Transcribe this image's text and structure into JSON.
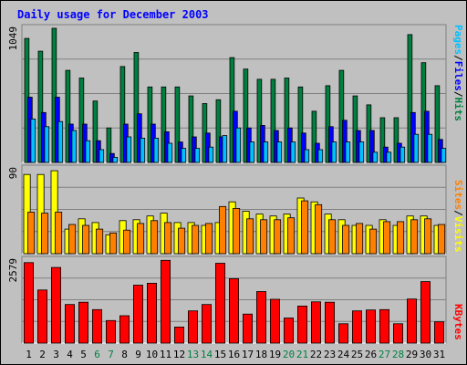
{
  "chart_data": [
    {
      "type": "bar",
      "title": "Daily usage for December 2003",
      "categories": [
        "1",
        "2",
        "3",
        "4",
        "5",
        "6",
        "7",
        "8",
        "9",
        "10",
        "11",
        "12",
        "13",
        "14",
        "15",
        "16",
        "17",
        "18",
        "19",
        "20",
        "21",
        "22",
        "23",
        "24",
        "25",
        "26",
        "27",
        "28",
        "29",
        "30",
        "31"
      ],
      "weekend_days": [
        "6",
        "7",
        "13",
        "14",
        "20",
        "21",
        "27",
        "28"
      ],
      "ymax_label": "1049",
      "ylim": [
        0,
        1049
      ],
      "series": [
        {
          "name": "Hits",
          "color": "#008040",
          "values": [
            970,
            870,
            1049,
            720,
            660,
            480,
            270,
            750,
            860,
            590,
            590,
            590,
            520,
            460,
            490,
            820,
            730,
            650,
            650,
            660,
            590,
            400,
            600,
            720,
            520,
            450,
            350,
            350,
            1000,
            780,
            600
          ]
        },
        {
          "name": "Files",
          "color": "#0000ff",
          "values": [
            510,
            390,
            510,
            300,
            300,
            170,
            70,
            300,
            380,
            300,
            240,
            160,
            200,
            230,
            200,
            400,
            270,
            290,
            250,
            270,
            230,
            150,
            280,
            330,
            250,
            250,
            120,
            150,
            390,
            400,
            180
          ]
        },
        {
          "name": "Pages",
          "color": "#00c0ff",
          "values": [
            340,
            280,
            320,
            250,
            170,
            100,
            40,
            200,
            190,
            190,
            150,
            110,
            110,
            120,
            210,
            270,
            160,
            160,
            160,
            160,
            100,
            100,
            160,
            160,
            160,
            80,
            80,
            120,
            220,
            220,
            110
          ]
        }
      ]
    },
    {
      "type": "bar",
      "categories": [
        "1",
        "2",
        "3",
        "4",
        "5",
        "6",
        "7",
        "8",
        "9",
        "10",
        "11",
        "12",
        "13",
        "14",
        "15",
        "16",
        "17",
        "18",
        "19",
        "20",
        "21",
        "22",
        "23",
        "24",
        "25",
        "26",
        "27",
        "28",
        "29",
        "30",
        "31"
      ],
      "ymax_label": "90",
      "ylim": [
        0,
        90
      ],
      "series": [
        {
          "name": "Visits",
          "color": "#ffff00",
          "values": [
            84,
            84,
            88,
            26,
            37,
            33,
            20,
            35,
            36,
            40,
            43,
            33,
            33,
            30,
            33,
            55,
            45,
            42,
            40,
            42,
            59,
            55,
            42,
            36,
            30,
            30,
            36,
            30,
            40,
            40,
            30
          ]
        },
        {
          "name": "Sites",
          "color": "#ff8000",
          "values": [
            44,
            43,
            44,
            31,
            30,
            26,
            22,
            25,
            32,
            35,
            33,
            27,
            30,
            32,
            50,
            48,
            37,
            36,
            36,
            38,
            56,
            52,
            36,
            30,
            32,
            26,
            34,
            34,
            36,
            37,
            31
          ]
        }
      ]
    },
    {
      "type": "bar",
      "categories": [
        "1",
        "2",
        "3",
        "4",
        "5",
        "6",
        "7",
        "8",
        "9",
        "10",
        "11",
        "12",
        "13",
        "14",
        "15",
        "16",
        "17",
        "18",
        "19",
        "20",
        "21",
        "22",
        "23",
        "24",
        "25",
        "26",
        "27",
        "28",
        "29",
        "30",
        "31"
      ],
      "ymax_label": "2579",
      "ylim": [
        0,
        2579
      ],
      "series": [
        {
          "name": "KBytes",
          "color": "#ff0000",
          "values": [
            2500,
            1650,
            2350,
            1200,
            1270,
            1040,
            700,
            850,
            1800,
            1860,
            2570,
            500,
            1000,
            1200,
            2480,
            2000,
            900,
            1600,
            1360,
            780,
            1150,
            1280,
            1270,
            600,
            1000,
            1030,
            1040,
            600,
            1370,
            1910,
            660
          ]
        }
      ]
    }
  ],
  "side_labels": {
    "top": [
      "Pages",
      "/",
      "Files",
      "/",
      "Hits"
    ],
    "middle": [
      "Sites",
      "/",
      "Visits"
    ],
    "bottom": [
      "KBytes"
    ]
  },
  "colors": {
    "frame_bg": "#c0c0c0",
    "panel_bg": "#c0c0c0",
    "title": "#0000ff",
    "weekday_tick": "#000000",
    "weekend_tick": "#008040",
    "slash": "#000000"
  }
}
